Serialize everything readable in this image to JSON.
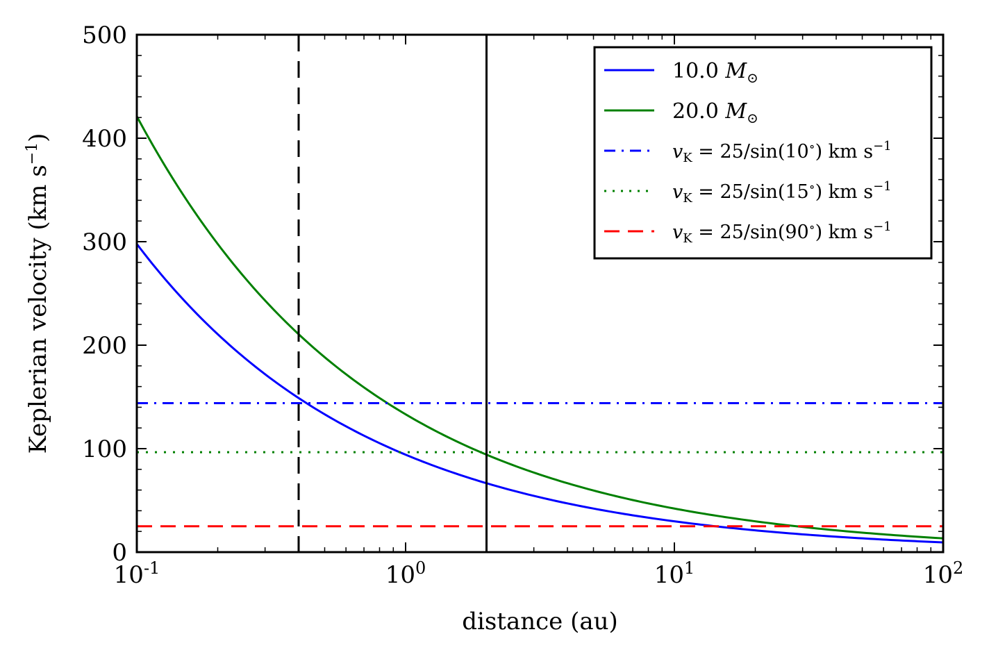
{
  "chart_data": {
    "type": "line",
    "xscale": "log",
    "xlim": [
      0.1,
      100
    ],
    "ylim": [
      0,
      500
    ],
    "xlabel": "distance (au)",
    "ylabel": "Keplerian velocity (km s",
    "ylabel_sup": "−1",
    "ylabel_close": ")",
    "grid": false,
    "legend_position": "top-right",
    "x_ticks": [
      {
        "value": 0.1,
        "base": "10",
        "exp": "-1"
      },
      {
        "value": 1,
        "base": "10",
        "exp": "0"
      },
      {
        "value": 10,
        "base": "10",
        "exp": "1"
      },
      {
        "value": 100,
        "base": "10",
        "exp": "2"
      }
    ],
    "y_ticks": [
      {
        "value": 0,
        "label": "0"
      },
      {
        "value": 100,
        "label": "100"
      },
      {
        "value": 200,
        "label": "200"
      },
      {
        "value": 300,
        "label": "300"
      },
      {
        "value": 400,
        "label": "400"
      },
      {
        "value": 500,
        "label": "500"
      }
    ],
    "series": [
      {
        "name": "10.0 M⊙",
        "label_main": "10.0 ",
        "label_math": "M",
        "label_sub": "⊙",
        "kind": "keplerian",
        "mass_msun": 10.0,
        "color": "#0000ff",
        "style": "solid",
        "x_range": [
          0.1,
          100
        ],
        "sample_points": [
          {
            "x": 0.1,
            "y": 298
          },
          {
            "x": 1,
            "y": 94
          },
          {
            "x": 10,
            "y": 30
          },
          {
            "x": 100,
            "y": 9.4
          }
        ]
      },
      {
        "name": "20.0 M⊙",
        "label_main": "20.0 ",
        "label_math": "M",
        "label_sub": "⊙",
        "kind": "keplerian",
        "mass_msun": 20.0,
        "color": "#008000",
        "style": "solid",
        "x_range": [
          0.1,
          100
        ],
        "sample_points": [
          {
            "x": 0.1,
            "y": 421
          },
          {
            "x": 1,
            "y": 133
          },
          {
            "x": 10,
            "y": 42
          },
          {
            "x": 100,
            "y": 13.3
          }
        ]
      },
      {
        "name": "vK = 25/sin(10°) km s−1",
        "label_v": "v",
        "label_vsub": "K",
        "label_rest": " = 25/sin(10",
        "label_deg": "∘",
        "label_unit": ") km s",
        "label_unit_sup": "−1",
        "kind": "constant",
        "value": 144,
        "color": "#0000ff",
        "style": "dashdot"
      },
      {
        "name": "vK = 25/sin(15°) km s−1",
        "label_v": "v",
        "label_vsub": "K",
        "label_rest": " = 25/sin(15",
        "label_deg": "∘",
        "label_unit": ") km s",
        "label_unit_sup": "−1",
        "kind": "constant",
        "value": 96.6,
        "color": "#008000",
        "style": "dotted"
      },
      {
        "name": "vK = 25/sin(90°) km s−1",
        "label_v": "v",
        "label_vsub": "K",
        "label_rest": " = 25/sin(90",
        "label_deg": "∘",
        "label_unit": ") km s",
        "label_unit_sup": "−1",
        "kind": "constant",
        "value": 25,
        "color": "#ff0000",
        "style": "dashed"
      }
    ],
    "vertical_lines": [
      {
        "x": 0.4,
        "color": "#000000",
        "style": "dashed"
      },
      {
        "x": 2.0,
        "color": "#000000",
        "style": "solid"
      }
    ]
  }
}
